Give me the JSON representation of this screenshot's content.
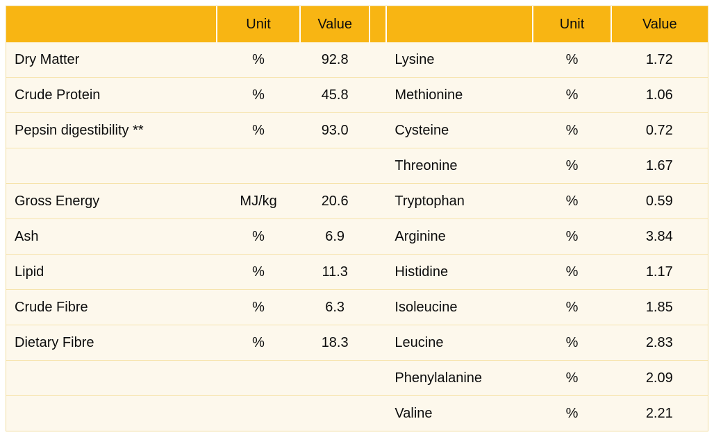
{
  "table": {
    "header": {
      "left_label": "",
      "unit": "Unit",
      "value": "Value",
      "spacer": "",
      "right_label": "",
      "unit2": "Unit",
      "value2": "Value"
    },
    "rows": [
      {
        "l_label": "Dry Matter",
        "l_unit": "%",
        "l_value": "92.8",
        "r_label": "Lysine",
        "r_unit": "%",
        "r_value": "1.72"
      },
      {
        "l_label": "Crude Protein",
        "l_unit": "%",
        "l_value": "45.8",
        "r_label": "Methionine",
        "r_unit": "%",
        "r_value": "1.06"
      },
      {
        "l_label": "Pepsin digestibility **",
        "l_unit": "%",
        "l_value": "93.0",
        "r_label": "Cysteine",
        "r_unit": "%",
        "r_value": "0.72"
      },
      {
        "l_label": "",
        "l_unit": "",
        "l_value": "",
        "r_label": "Threonine",
        "r_unit": "%",
        "r_value": "1.67"
      },
      {
        "l_label": "Gross Energy",
        "l_unit": "MJ/kg",
        "l_value": "20.6",
        "r_label": "Tryptophan",
        "r_unit": "%",
        "r_value": "0.59"
      },
      {
        "l_label": "Ash",
        "l_unit": "%",
        "l_value": "6.9",
        "r_label": "Arginine",
        "r_unit": "%",
        "r_value": "3.84"
      },
      {
        "l_label": "Lipid",
        "l_unit": "%",
        "l_value": "11.3",
        "r_label": "Histidine",
        "r_unit": "%",
        "r_value": "1.17"
      },
      {
        "l_label": "Crude Fibre",
        "l_unit": "%",
        "l_value": "6.3",
        "r_label": "Isoleucine",
        "r_unit": "%",
        "r_value": "1.85"
      },
      {
        "l_label": "Dietary Fibre",
        "l_unit": "%",
        "l_value": "18.3",
        "r_label": "Leucine",
        "r_unit": "%",
        "r_value": "2.83"
      },
      {
        "l_label": "",
        "l_unit": "",
        "l_value": "",
        "r_label": "Phenylalanine",
        "r_unit": "%",
        "r_value": "2.09"
      },
      {
        "l_label": "",
        "l_unit": "",
        "l_value": "",
        "r_label": "Valine",
        "r_unit": "%",
        "r_value": "2.21"
      }
    ],
    "colors": {
      "header_bg": "#f8b513",
      "body_bg": "#fdf8ec",
      "row_separator": "#f6e3ab",
      "outer_border": "#f0dc9f",
      "header_separator": "#ffffff",
      "text": "#0d0d0d",
      "page_bg": "#ffffff"
    }
  }
}
